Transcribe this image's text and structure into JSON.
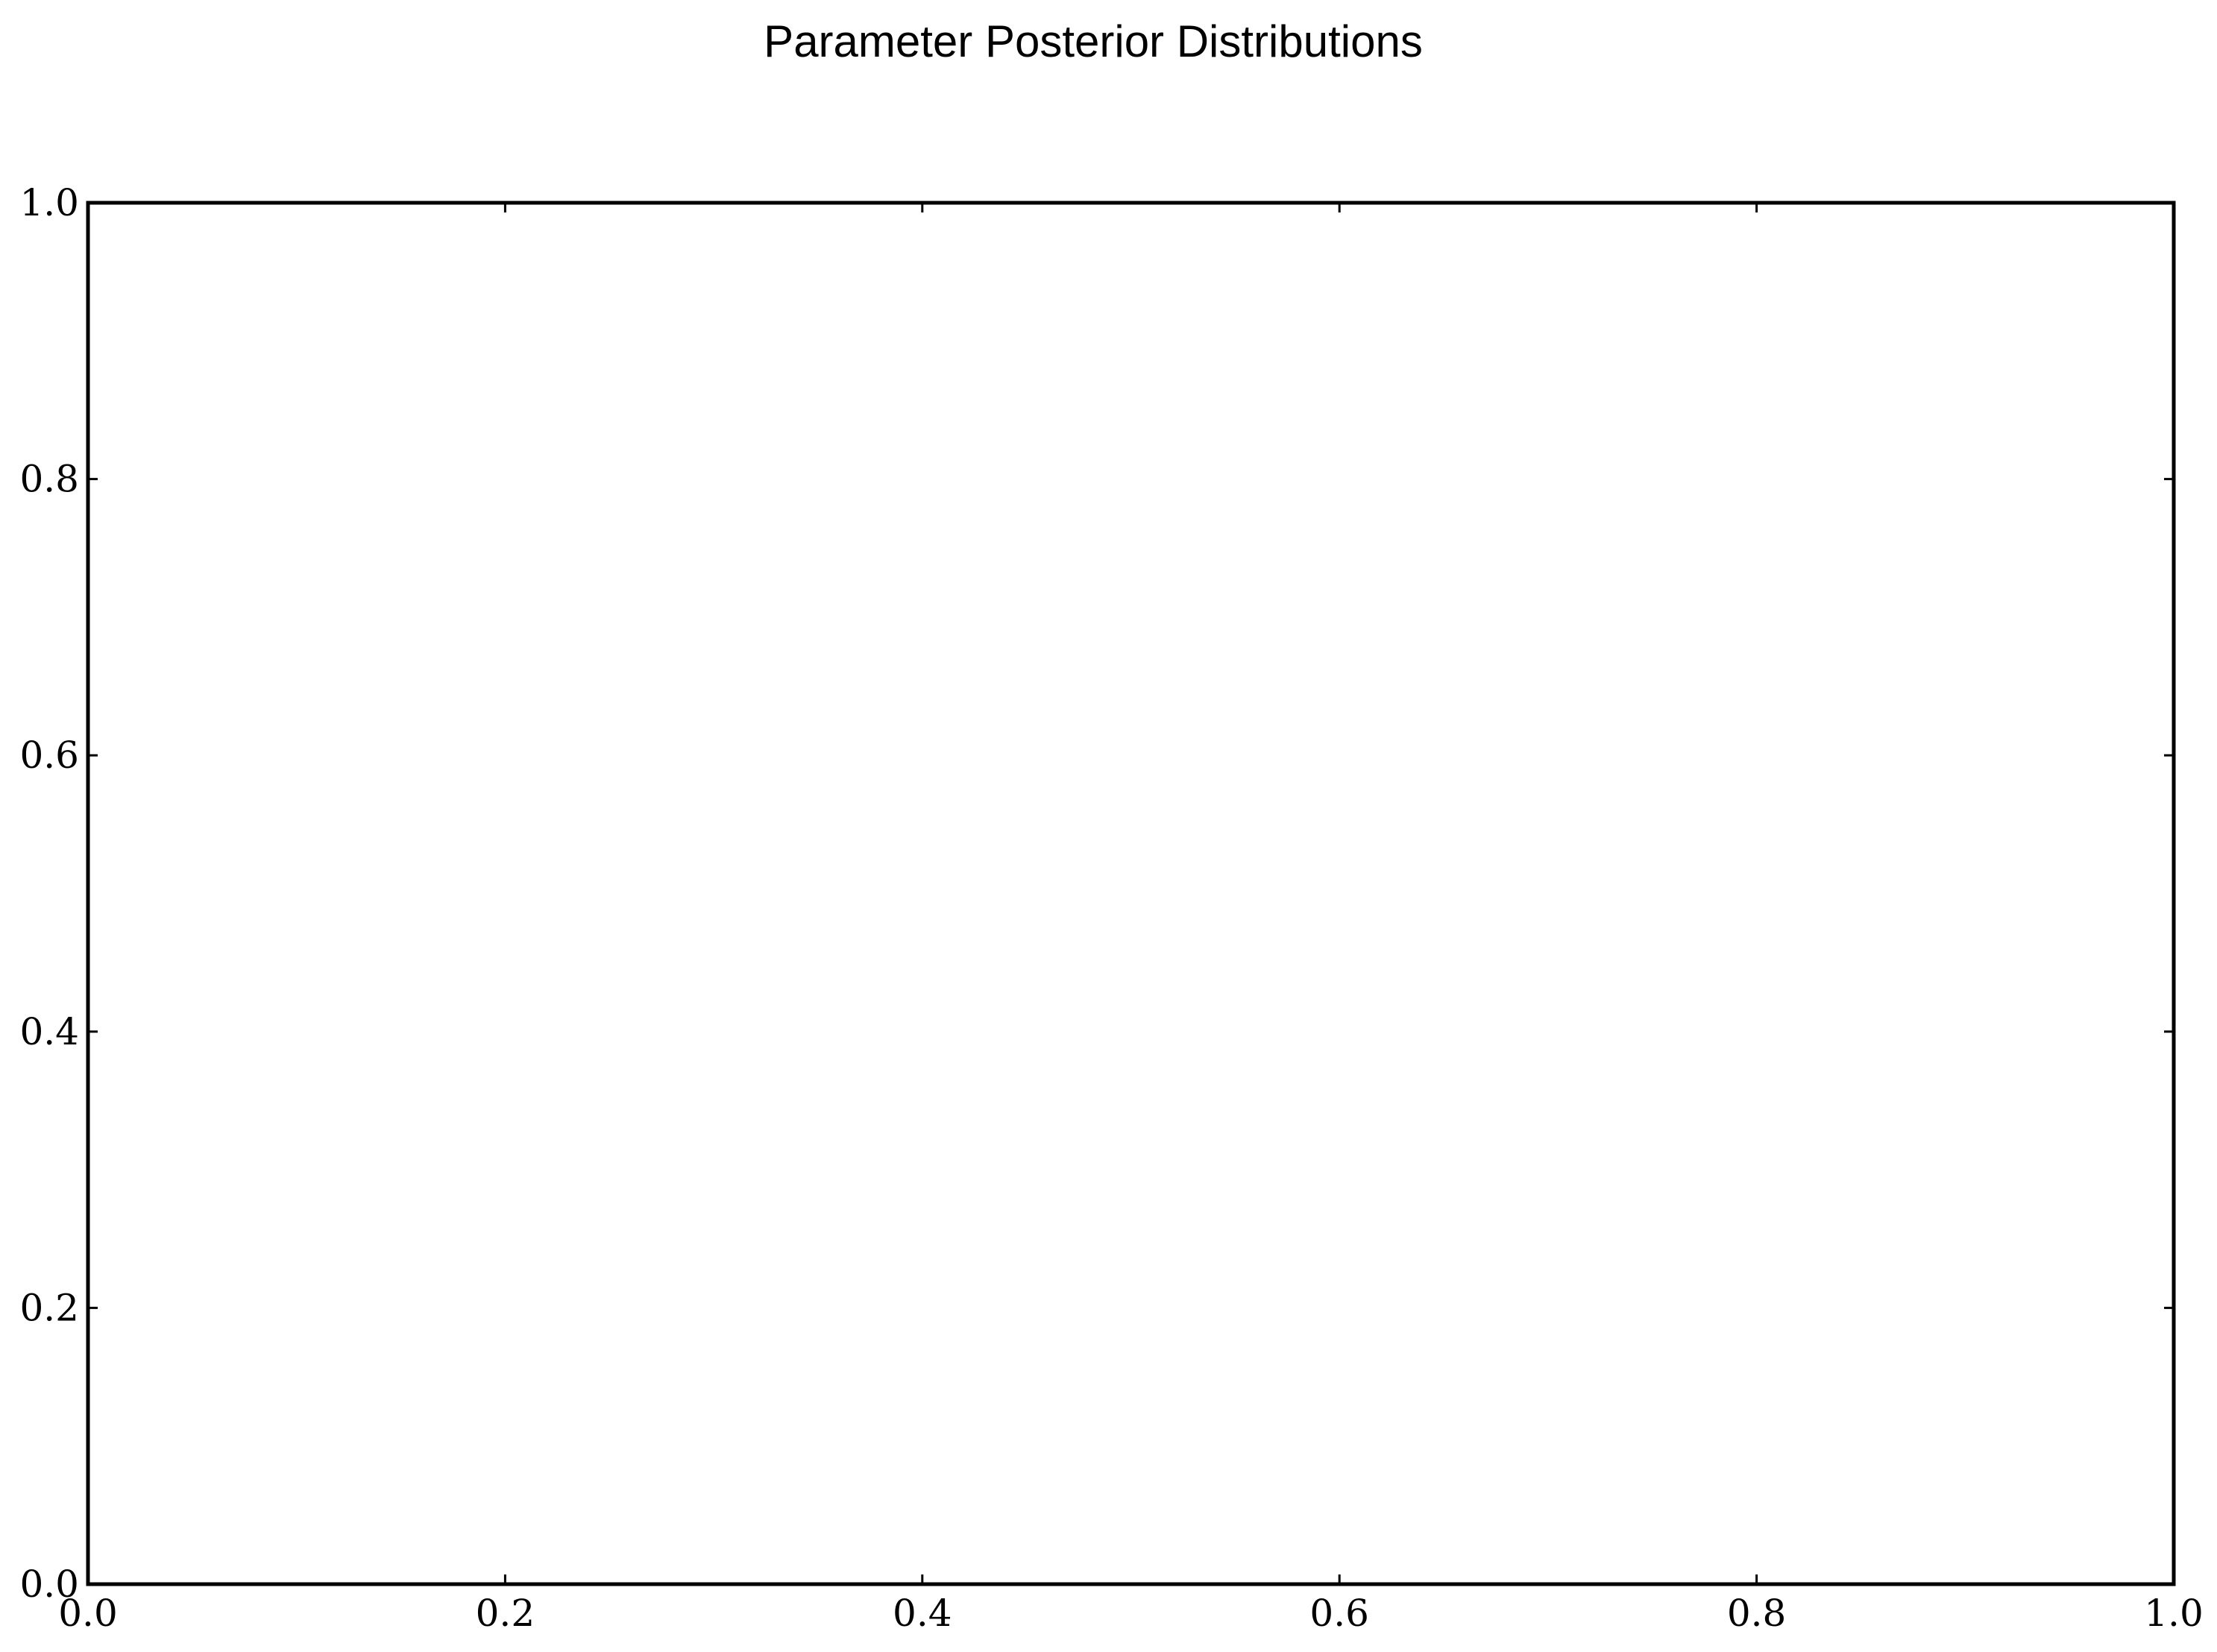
{
  "chart_data": {
    "type": "line",
    "title": "Parameter Posterior Distributions",
    "xlabel": "",
    "ylabel": "",
    "xlim": [
      0.0,
      1.0
    ],
    "ylim": [
      0.0,
      1.0
    ],
    "x_ticks": [
      "0.0",
      "0.2",
      "0.4",
      "0.6",
      "0.8",
      "1.0"
    ],
    "y_ticks": [
      "0.0",
      "0.2",
      "0.4",
      "0.6",
      "0.8",
      "1.0"
    ],
    "x_tick_values": [
      0.0,
      0.2,
      0.4,
      0.6,
      0.8,
      1.0
    ],
    "y_tick_values": [
      0.0,
      0.2,
      0.4,
      0.6,
      0.8,
      1.0
    ],
    "series": [],
    "grid": false,
    "legend": "none",
    "colors": {
      "axes": "#000000",
      "background": "#ffffff"
    }
  }
}
